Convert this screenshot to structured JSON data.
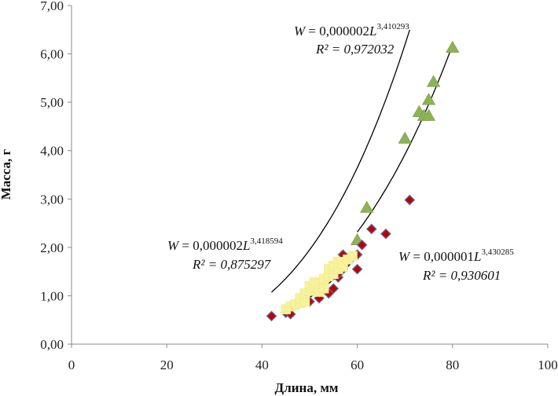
{
  "chart_data": {
    "type": "scatter",
    "title": "",
    "xlabel": "Длина, мм",
    "ylabel": "Масса, г",
    "xlim": [
      0,
      100
    ],
    "ylim": [
      0,
      7
    ],
    "x_ticks": [
      "0",
      "20",
      "40",
      "60",
      "80",
      "100"
    ],
    "y_ticks": [
      "0,00",
      "1,00",
      "2,00",
      "3,00",
      "4,00",
      "5,00",
      "6,00",
      "7,00"
    ],
    "grid": false,
    "legend": "none",
    "series": [
      {
        "marker": "triangle",
        "color": "#8db356",
        "points": [
          [
            60,
            2.15
          ],
          [
            62,
            2.82
          ],
          [
            70,
            4.25
          ],
          [
            73,
            4.8
          ],
          [
            74,
            4.72
          ],
          [
            75,
            4.72
          ],
          [
            75,
            5.05
          ],
          [
            76,
            5.42
          ],
          [
            80,
            6.13
          ]
        ],
        "trend": {
          "a": 2e-06,
          "b": 3.410293,
          "x_range": [
            60,
            80
          ]
        },
        "equation": {
          "prefix": "W",
          "mid": " = 0,000002",
          "var": "L",
          "exp": "3,410293",
          "r2": "R² = 0,972032"
        }
      },
      {
        "marker": "diamond",
        "color": "#c00000",
        "edge": "#5b6fa8",
        "points": [
          [
            42,
            0.58
          ],
          [
            45,
            0.65
          ],
          [
            46,
            0.62
          ],
          [
            50,
            0.88
          ],
          [
            52,
            0.95
          ],
          [
            54,
            1.05
          ],
          [
            55,
            1.15
          ],
          [
            56,
            1.38
          ],
          [
            56,
            1.45
          ],
          [
            57,
            1.55
          ],
          [
            57,
            1.85
          ],
          [
            58,
            1.72
          ],
          [
            59,
            1.8
          ],
          [
            60,
            1.55
          ],
          [
            60,
            1.85
          ],
          [
            61,
            2.05
          ],
          [
            63,
            2.38
          ],
          [
            66,
            2.28
          ],
          [
            71,
            2.98
          ]
        ],
        "trend": {
          "a": 1e-06,
          "b": 3.430285,
          "x_range": [
            42,
            71
          ]
        },
        "equation": {
          "prefix": "W",
          "mid": " = 0,000001",
          "var": "L",
          "exp": "3,430285",
          "r2": "R² = 0,930601"
        }
      },
      {
        "marker": "square",
        "color": "#f7f29b",
        "points": [
          [
            45,
            0.72
          ],
          [
            46,
            0.78
          ],
          [
            47,
            0.82
          ],
          [
            48,
            0.85
          ],
          [
            48,
            0.95
          ],
          [
            49,
            0.88
          ],
          [
            49,
            1.05
          ],
          [
            50,
            1.1
          ],
          [
            50,
            1.2
          ],
          [
            51,
            1.18
          ],
          [
            51,
            1.28
          ],
          [
            52,
            1.08
          ],
          [
            52,
            1.25
          ],
          [
            53,
            1.15
          ],
          [
            53,
            1.35
          ],
          [
            54,
            1.4
          ],
          [
            54,
            1.55
          ],
          [
            55,
            1.45
          ],
          [
            55,
            1.62
          ],
          [
            56,
            1.55
          ],
          [
            56,
            1.7
          ],
          [
            57,
            1.6
          ],
          [
            58,
            1.75
          ],
          [
            59,
            1.82
          ]
        ],
        "trend": {
          "a": 2e-06,
          "b": 3.418594,
          "x_range": [
            45,
            59
          ]
        },
        "equation": {
          "prefix": "W",
          "mid": " = 0,000002",
          "var": "L",
          "exp": "3,418594",
          "r2": "R² = 0,875297"
        }
      }
    ]
  }
}
